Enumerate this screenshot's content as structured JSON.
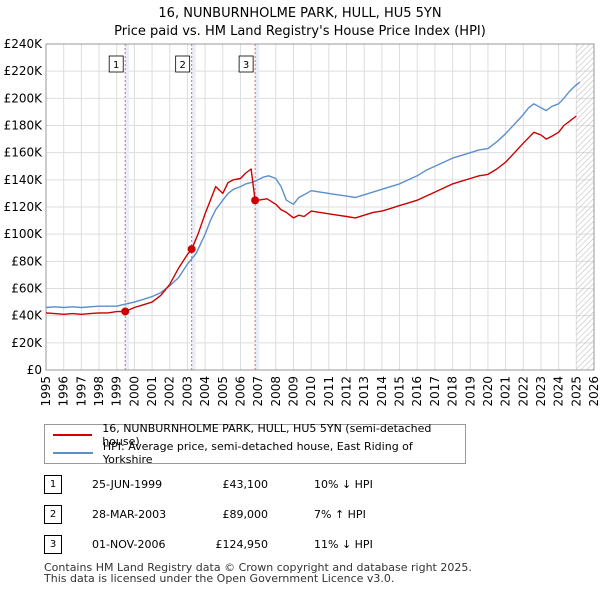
{
  "title_line1": "16, NUNBURNHOLME PARK, HULL, HU5 5YN",
  "title_line2": "Price paid vs. HM Land Registry's House Price Index (HPI)",
  "colors": {
    "red": "#cc0000",
    "blue": "#5b8fcc",
    "vline": "#e06666",
    "grid": "#dddddd",
    "hatch": "#b0b0b0",
    "shade": "#e8eef8"
  },
  "chart_data": {
    "type": "line",
    "x_range": [
      1995,
      2026
    ],
    "ylim": [
      0,
      240000
    ],
    "x_ticks": [
      "1995",
      "1996",
      "1997",
      "1998",
      "1999",
      "2000",
      "2001",
      "2002",
      "2003",
      "2004",
      "2005",
      "2006",
      "2007",
      "2008",
      "2009",
      "2010",
      "2011",
      "2012",
      "2013",
      "2014",
      "2015",
      "2016",
      "2017",
      "2018",
      "2019",
      "2020",
      "2021",
      "2022",
      "2023",
      "2024",
      "2025",
      "2026"
    ],
    "y_ticks": [
      {
        "value": 0,
        "label": "£0"
      },
      {
        "value": 20000,
        "label": "£20K"
      },
      {
        "value": 40000,
        "label": "£40K"
      },
      {
        "value": 60000,
        "label": "£60K"
      },
      {
        "value": 80000,
        "label": "£80K"
      },
      {
        "value": 100000,
        "label": "£100K"
      },
      {
        "value": 120000,
        "label": "£120K"
      },
      {
        "value": 140000,
        "label": "£140K"
      },
      {
        "value": 160000,
        "label": "£160K"
      },
      {
        "value": 180000,
        "label": "£180K"
      },
      {
        "value": 200000,
        "label": "£200K"
      },
      {
        "value": 220000,
        "label": "£220K"
      },
      {
        "value": 240000,
        "label": "£240K"
      }
    ],
    "future_from": 2025.0,
    "series": [
      {
        "name": "16, NUNBURNHOLME PARK, HULL, HU5 5YN (semi-detached house)",
        "color": "#cc0000",
        "x": [
          1995.0,
          1995.5,
          1996.0,
          1996.5,
          1997.0,
          1997.5,
          1998.0,
          1998.5,
          1999.0,
          1999.48,
          2000.0,
          2000.5,
          2001.0,
          2001.5,
          2002.0,
          2002.5,
          2003.0,
          2003.24,
          2003.6,
          2004.0,
          2004.3,
          2004.6,
          2005.0,
          2005.3,
          2005.6,
          2006.0,
          2006.3,
          2006.6,
          2006.83,
          2007.0,
          2007.5,
          2008.0,
          2008.3,
          2008.6,
          2009.0,
          2009.3,
          2009.6,
          2010.0,
          2010.5,
          2011.0,
          2011.5,
          2012.0,
          2012.5,
          2013.0,
          2013.5,
          2014.0,
          2014.5,
          2015.0,
          2015.5,
          2016.0,
          2016.5,
          2017.0,
          2017.5,
          2018.0,
          2018.5,
          2019.0,
          2019.5,
          2020.0,
          2020.5,
          2021.0,
          2021.5,
          2022.0,
          2022.3,
          2022.6,
          2023.0,
          2023.3,
          2023.6,
          2024.0,
          2024.3,
          2024.6,
          2025.0
        ],
        "y": [
          42000,
          41500,
          41000,
          41500,
          41000,
          41500,
          42000,
          42000,
          43000,
          43100,
          46000,
          48000,
          50000,
          55000,
          63000,
          75000,
          85000,
          89000,
          100000,
          115000,
          125000,
          135000,
          130000,
          138000,
          140000,
          141000,
          145000,
          148000,
          124950,
          125000,
          126000,
          122000,
          118000,
          116000,
          112000,
          114000,
          113000,
          117000,
          116000,
          115000,
          114000,
          113000,
          112000,
          114000,
          116000,
          117000,
          119000,
          121000,
          123000,
          125000,
          128000,
          131000,
          134000,
          137000,
          139000,
          141000,
          143000,
          144000,
          148000,
          153000,
          160000,
          167000,
          171000,
          175000,
          173000,
          170000,
          172000,
          175000,
          180000,
          183000,
          187000
        ]
      },
      {
        "name": "HPI: Average price, semi-detached house, East Riding of Yorkshire",
        "color": "#5b8fcc",
        "x": [
          1995.0,
          1995.5,
          1996.0,
          1996.5,
          1997.0,
          1997.5,
          1998.0,
          1998.5,
          1999.0,
          1999.5,
          2000.0,
          2000.5,
          2001.0,
          2001.5,
          2002.0,
          2002.5,
          2003.0,
          2003.5,
          2004.0,
          2004.3,
          2004.6,
          2005.0,
          2005.3,
          2005.6,
          2006.0,
          2006.3,
          2006.6,
          2006.83,
          2007.0,
          2007.3,
          2007.6,
          2008.0,
          2008.3,
          2008.6,
          2009.0,
          2009.3,
          2009.6,
          2010.0,
          2010.5,
          2011.0,
          2011.5,
          2012.0,
          2012.5,
          2013.0,
          2013.5,
          2014.0,
          2014.5,
          2015.0,
          2015.5,
          2016.0,
          2016.5,
          2017.0,
          2017.5,
          2018.0,
          2018.5,
          2019.0,
          2019.5,
          2020.0,
          2020.5,
          2021.0,
          2021.5,
          2022.0,
          2022.3,
          2022.6,
          2023.0,
          2023.3,
          2023.6,
          2024.0,
          2024.3,
          2024.6,
          2025.0,
          2025.2
        ],
        "y": [
          46000,
          46500,
          46000,
          46500,
          46000,
          46500,
          47000,
          47000,
          47000,
          48500,
          50000,
          52000,
          54000,
          57000,
          62000,
          68000,
          78000,
          86000,
          100000,
          110000,
          118000,
          125000,
          130000,
          133000,
          135000,
          137000,
          138000,
          139000,
          140000,
          142000,
          143000,
          141000,
          135000,
          125000,
          122000,
          127000,
          129000,
          132000,
          131000,
          130000,
          129000,
          128000,
          127000,
          129000,
          131000,
          133000,
          135000,
          137000,
          140000,
          143000,
          147000,
          150000,
          153000,
          156000,
          158000,
          160000,
          162000,
          163000,
          168000,
          174000,
          181000,
          188000,
          193000,
          196000,
          193000,
          191000,
          194000,
          196000,
          200000,
          205000,
          210000,
          212000
        ]
      }
    ],
    "markers": [
      {
        "label": "1",
        "x": 1999.48,
        "y": 43100
      },
      {
        "label": "2",
        "x": 2003.24,
        "y": 89000
      },
      {
        "label": "3",
        "x": 2006.83,
        "y": 124950
      }
    ]
  },
  "legend": [
    {
      "label": "16, NUNBURNHOLME PARK, HULL, HU5 5YN (semi-detached house)",
      "color": "#cc0000"
    },
    {
      "label": "HPI: Average price, semi-detached house, East Riding of Yorkshire",
      "color": "#5b8fcc"
    }
  ],
  "transactions": [
    {
      "num": "1",
      "date": "25-JUN-1999",
      "price": "£43,100",
      "hpi": "10% ↓ HPI"
    },
    {
      "num": "2",
      "date": "28-MAR-2003",
      "price": "£89,000",
      "hpi": "7% ↑ HPI"
    },
    {
      "num": "3",
      "date": "01-NOV-2006",
      "price": "£124,950",
      "hpi": "11% ↓ HPI"
    }
  ],
  "footer_line1": "Contains HM Land Registry data © Crown copyright and database right 2025.",
  "footer_line2": "This data is licensed under the Open Government Licence v3.0."
}
